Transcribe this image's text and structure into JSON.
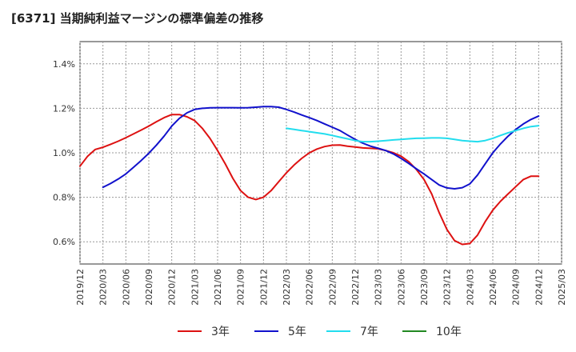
{
  "chart_data": {
    "type": "line",
    "title": "[6371]  当期純利益マージンの標準偏差の推移",
    "xlabel": "",
    "ylabel": "",
    "ylim": [
      0.5,
      1.5
    ],
    "y_ticks": [
      "0.6%",
      "0.8%",
      "1.0%",
      "1.2%",
      "1.4%"
    ],
    "y_tick_values": [
      0.6,
      0.8,
      1.0,
      1.2,
      1.4
    ],
    "x_ticks": [
      "2019/12",
      "2020/03",
      "2020/06",
      "2020/09",
      "2020/12",
      "2021/03",
      "2021/06",
      "2021/09",
      "2021/12",
      "2022/03",
      "2022/06",
      "2022/09",
      "2022/12",
      "2023/03",
      "2023/06",
      "2023/09",
      "2023/12",
      "2024/03",
      "2024/06",
      "2024/09",
      "2024/12",
      "2025/03"
    ],
    "grid": true,
    "legend_position": "bottom",
    "series": [
      {
        "name": "3年",
        "color": "#dd1111",
        "x": [
          "2019/12",
          "2020/01",
          "2020/02",
          "2020/03",
          "2020/04",
          "2020/05",
          "2020/06",
          "2020/07",
          "2020/08",
          "2020/09",
          "2020/10",
          "2020/11",
          "2020/12",
          "2021/01",
          "2021/02",
          "2021/03",
          "2021/04",
          "2021/05",
          "2021/06",
          "2021/07",
          "2021/08",
          "2021/09",
          "2021/10",
          "2021/11",
          "2021/12",
          "2022/01",
          "2022/02",
          "2022/03",
          "2022/04",
          "2022/05",
          "2022/06",
          "2022/07",
          "2022/08",
          "2022/09",
          "2022/10",
          "2022/11",
          "2022/12",
          "2023/01",
          "2023/02",
          "2023/03",
          "2023/04",
          "2023/05",
          "2023/06",
          "2023/07",
          "2023/08",
          "2023/09",
          "2023/10",
          "2023/11",
          "2023/12",
          "2024/01",
          "2024/02",
          "2024/03",
          "2024/04",
          "2024/05",
          "2024/06",
          "2024/07",
          "2024/08",
          "2024/09",
          "2024/10",
          "2024/11",
          "2024/12"
        ],
        "values": [
          0.94,
          0.985,
          1.015,
          1.025,
          1.038,
          1.052,
          1.068,
          1.085,
          1.102,
          1.12,
          1.14,
          1.158,
          1.172,
          1.172,
          1.162,
          1.145,
          1.11,
          1.065,
          1.01,
          0.95,
          0.885,
          0.83,
          0.8,
          0.79,
          0.8,
          0.83,
          0.87,
          0.91,
          0.945,
          0.975,
          1.0,
          1.017,
          1.028,
          1.034,
          1.035,
          1.03,
          1.026,
          1.022,
          1.02,
          1.018,
          1.01,
          1.0,
          0.985,
          0.96,
          0.925,
          0.88,
          0.815,
          0.73,
          0.655,
          0.605,
          0.588,
          0.592,
          0.63,
          0.69,
          0.742,
          0.782,
          0.815,
          0.848,
          0.88,
          0.895,
          0.895
        ]
      },
      {
        "name": "5年",
        "color": "#1111cc",
        "x": [
          "2020/03",
          "2020/04",
          "2020/05",
          "2020/06",
          "2020/07",
          "2020/08",
          "2020/09",
          "2020/10",
          "2020/11",
          "2020/12",
          "2021/01",
          "2021/02",
          "2021/03",
          "2021/04",
          "2021/05",
          "2021/06",
          "2021/07",
          "2021/08",
          "2021/09",
          "2021/10",
          "2021/11",
          "2021/12",
          "2022/01",
          "2022/02",
          "2022/03",
          "2022/04",
          "2022/05",
          "2022/06",
          "2022/07",
          "2022/08",
          "2022/09",
          "2022/10",
          "2022/11",
          "2022/12",
          "2023/01",
          "2023/02",
          "2023/03",
          "2023/04",
          "2023/05",
          "2023/06",
          "2023/07",
          "2023/08",
          "2023/09",
          "2023/10",
          "2023/11",
          "2023/12",
          "2024/01",
          "2024/02",
          "2024/03",
          "2024/04",
          "2024/05",
          "2024/06",
          "2024/07",
          "2024/08",
          "2024/09",
          "2024/10",
          "2024/11",
          "2024/12"
        ],
        "values": [
          0.845,
          0.862,
          0.882,
          0.905,
          0.935,
          0.965,
          0.998,
          1.035,
          1.075,
          1.12,
          1.155,
          1.18,
          1.195,
          1.2,
          1.202,
          1.203,
          1.203,
          1.203,
          1.202,
          1.203,
          1.205,
          1.208,
          1.208,
          1.205,
          1.195,
          1.183,
          1.17,
          1.158,
          1.145,
          1.13,
          1.115,
          1.1,
          1.08,
          1.06,
          1.043,
          1.03,
          1.02,
          1.01,
          0.995,
          0.975,
          0.952,
          0.928,
          0.905,
          0.88,
          0.855,
          0.842,
          0.838,
          0.843,
          0.86,
          0.9,
          0.95,
          1.0,
          1.04,
          1.075,
          1.105,
          1.13,
          1.15,
          1.165
        ]
      },
      {
        "name": "7年",
        "color": "#22ddee",
        "x": [
          "2022/03",
          "2022/04",
          "2022/05",
          "2022/06",
          "2022/07",
          "2022/08",
          "2022/09",
          "2022/10",
          "2022/11",
          "2022/12",
          "2023/01",
          "2023/02",
          "2023/03",
          "2023/04",
          "2023/05",
          "2023/06",
          "2023/07",
          "2023/08",
          "2023/09",
          "2023/10",
          "2023/11",
          "2023/12",
          "2024/01",
          "2024/02",
          "2024/03",
          "2024/04",
          "2024/05",
          "2024/06",
          "2024/07",
          "2024/08",
          "2024/09",
          "2024/10",
          "2024/11",
          "2024/12"
        ],
        "values": [
          1.11,
          1.105,
          1.1,
          1.095,
          1.09,
          1.085,
          1.078,
          1.07,
          1.063,
          1.055,
          1.05,
          1.05,
          1.052,
          1.055,
          1.058,
          1.06,
          1.063,
          1.065,
          1.066,
          1.067,
          1.067,
          1.065,
          1.06,
          1.055,
          1.052,
          1.05,
          1.055,
          1.065,
          1.078,
          1.09,
          1.1,
          1.11,
          1.118,
          1.122
        ]
      },
      {
        "name": "10年",
        "color": "#228822",
        "x": [],
        "values": []
      }
    ]
  }
}
